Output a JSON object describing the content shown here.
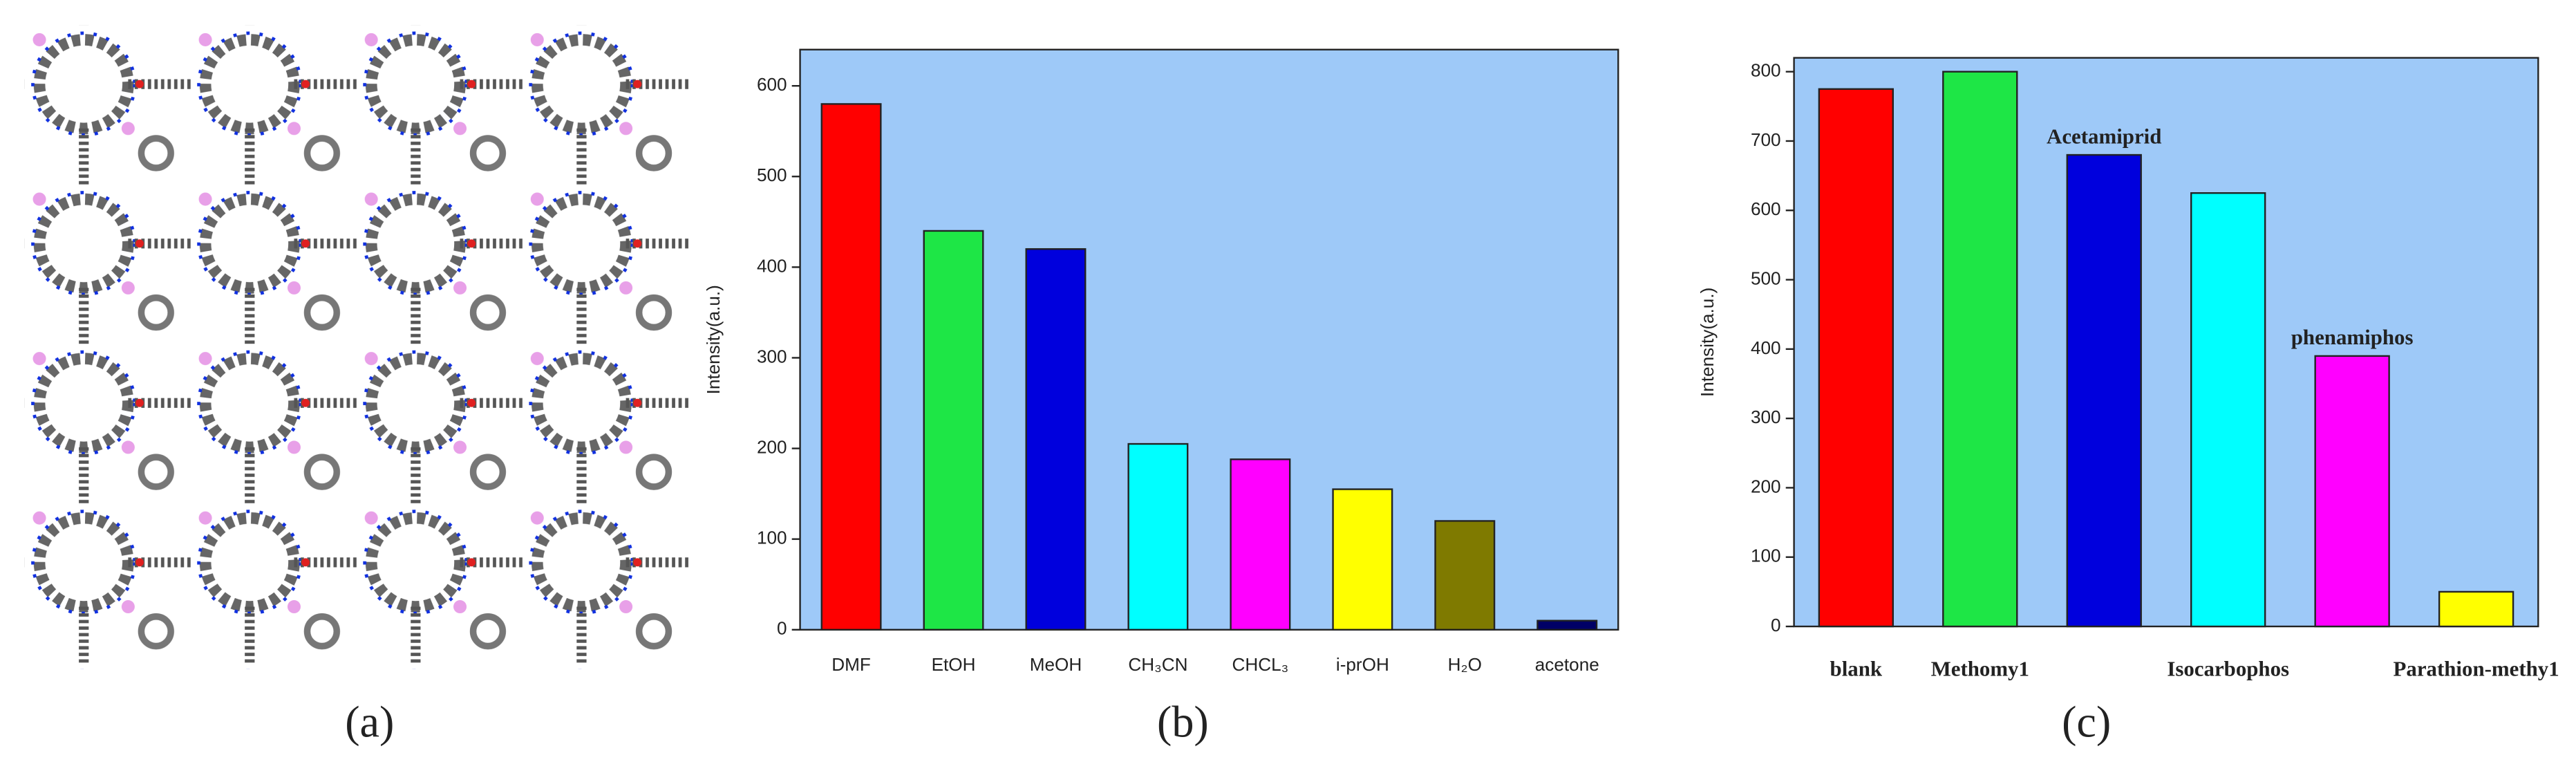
{
  "panel_a": {
    "caption": "(a)"
  },
  "chart_data": [
    {
      "type": "bar",
      "caption": "(b)",
      "ylabel": "Intensity(a.u.)",
      "categories": [
        "DMF",
        "EtOH",
        "MeOH",
        "CH₃CN",
        "CHCL₃",
        "i-prOH",
        "H₂O",
        "acetone"
      ],
      "values": [
        580,
        440,
        420,
        205,
        188,
        155,
        120,
        10
      ],
      "colors": [
        "#ff0000",
        "#1ee646",
        "#0000dd",
        "#00ffff",
        "#ff00ff",
        "#ffff00",
        "#7f7a00",
        "#000066"
      ],
      "ylim": [
        0,
        640
      ],
      "yticks": [
        0,
        100,
        200,
        300,
        400,
        500,
        600
      ],
      "plot_background": "#9ec9f8"
    },
    {
      "type": "bar",
      "caption": "(c)",
      "ylabel": "Intensity(a.u.)",
      "categories": [
        "blank",
        "Methomy1",
        "Acetamiprid",
        "Isocarbophos",
        "phenamiphos",
        "Parathion-methy1"
      ],
      "category_label_position": [
        "below",
        "below",
        "above",
        "below",
        "above",
        "below"
      ],
      "values": [
        775,
        800,
        680,
        625,
        390,
        50
      ],
      "colors": [
        "#ff0000",
        "#1ee646",
        "#0000dd",
        "#00ffff",
        "#ff00ff",
        "#ffff00"
      ],
      "ylim": [
        0,
        820
      ],
      "yticks": [
        0,
        100,
        200,
        300,
        400,
        500,
        600,
        700,
        800
      ],
      "plot_background": "#9ec9f8"
    }
  ]
}
